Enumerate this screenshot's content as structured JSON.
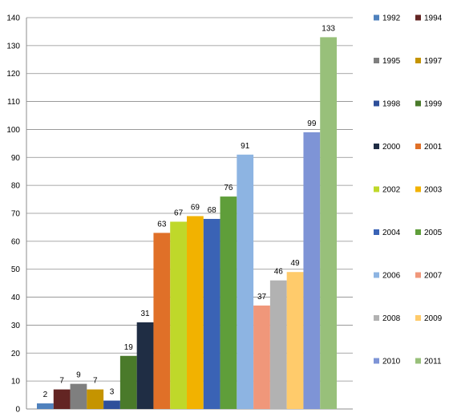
{
  "chart_data": {
    "type": "bar",
    "title": "",
    "xlabel": "",
    "ylabel": "",
    "ylim": [
      0,
      140
    ],
    "yticks": [
      0,
      10,
      20,
      30,
      40,
      50,
      60,
      70,
      80,
      90,
      100,
      110,
      120,
      130,
      140
    ],
    "grid": true,
    "legend_position": "right",
    "legend_columns": 2,
    "series": [
      {
        "name": "1992",
        "value": 2,
        "color": "#4F81BD"
      },
      {
        "name": "1994",
        "value": 7,
        "color": "#632523"
      },
      {
        "name": "1995",
        "value": 9,
        "color": "#7F7F7F"
      },
      {
        "name": "1997",
        "value": 7,
        "color": "#C59400"
      },
      {
        "name": "1998",
        "value": 3,
        "color": "#2E4F9A"
      },
      {
        "name": "1999",
        "value": 19,
        "color": "#4A7A2A"
      },
      {
        "name": "2000",
        "value": 31,
        "color": "#1F2D44"
      },
      {
        "name": "2001",
        "value": 63,
        "color": "#E07028"
      },
      {
        "name": "2002",
        "value": 67,
        "color": "#BFD82A"
      },
      {
        "name": "2003",
        "value": 69,
        "color": "#F2B200"
      },
      {
        "name": "2004",
        "value": 68,
        "color": "#3A63B5"
      },
      {
        "name": "2005",
        "value": 76,
        "color": "#5F9E3A"
      },
      {
        "name": "2006",
        "value": 91,
        "color": "#8DB4E2"
      },
      {
        "name": "2007",
        "value": 37,
        "color": "#F0977A"
      },
      {
        "name": "2008",
        "value": 46,
        "color": "#B2B2B2"
      },
      {
        "name": "2009",
        "value": 49,
        "color": "#FFCB6B"
      },
      {
        "name": "2010",
        "value": 99,
        "color": "#7E94D6"
      },
      {
        "name": "2011",
        "value": 133,
        "color": "#98C07A"
      }
    ]
  }
}
